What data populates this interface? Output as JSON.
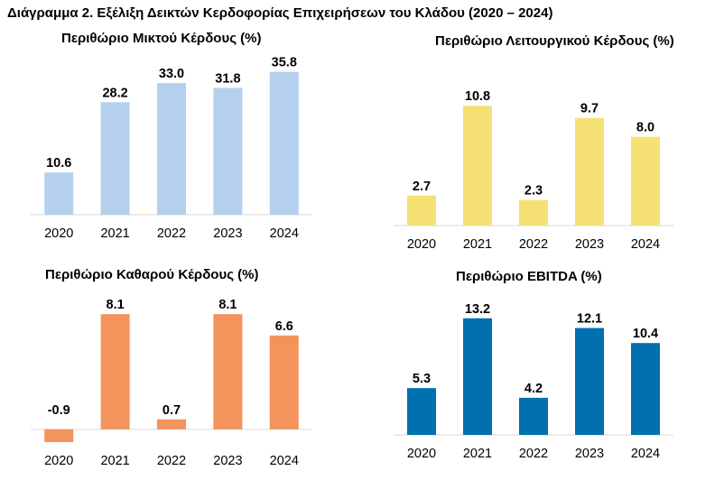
{
  "figure_title": "Διάγραμμα 2. Εξέλιξη Δεικτών Κερδοφορίας Επιχειρήσεων του Κλάδου (2020 – 2024)",
  "chart_data": [
    {
      "type": "bar",
      "title": "Περιθώριο Μικτού Κέρδους (%)",
      "categories": [
        "2020",
        "2021",
        "2022",
        "2023",
        "2024"
      ],
      "values": [
        10.6,
        28.2,
        33.0,
        31.8,
        35.8
      ],
      "value_labels": [
        "10.6",
        "28.2",
        "33.0",
        "31.8",
        "35.8"
      ],
      "color": "#b4d0ee",
      "ylim": [
        0,
        38
      ],
      "grid": false,
      "legend": "none"
    },
    {
      "type": "bar",
      "title": "Περιθώριο Λειτουργικού Κέρδους (%)",
      "categories": [
        "2020",
        "2021",
        "2022",
        "2023",
        "2024"
      ],
      "values": [
        2.7,
        10.8,
        2.3,
        9.7,
        8.0
      ],
      "value_labels": [
        "2.7",
        "10.8",
        "2.3",
        "9.7",
        "8.0"
      ],
      "color": "#f5e173",
      "ylim": [
        0,
        12.2
      ],
      "grid": false,
      "legend": "none"
    },
    {
      "type": "bar",
      "title": "Περιθώριο Καθαρού Κέρδους (%)",
      "categories": [
        "2020",
        "2021",
        "2022",
        "2023",
        "2024"
      ],
      "values": [
        -0.9,
        8.1,
        0.7,
        8.1,
        6.6
      ],
      "value_labels": [
        "-0.9",
        "8.1",
        "0.7",
        "8.1",
        "6.6"
      ],
      "color": "#f4935b",
      "ylim": [
        -0.9,
        9
      ],
      "grid": false,
      "legend": "none"
    },
    {
      "type": "bar",
      "title": "Περιθώριο EBITDA (%)",
      "categories": [
        "2020",
        "2021",
        "2022",
        "2023",
        "2024"
      ],
      "values": [
        5.3,
        13.2,
        4.2,
        12.1,
        10.4
      ],
      "value_labels": [
        "5.3",
        "13.2",
        "4.2",
        "12.1",
        "10.4"
      ],
      "color": "#0070b0",
      "ylim": [
        0,
        14.2
      ],
      "grid": false,
      "legend": "none"
    }
  ]
}
